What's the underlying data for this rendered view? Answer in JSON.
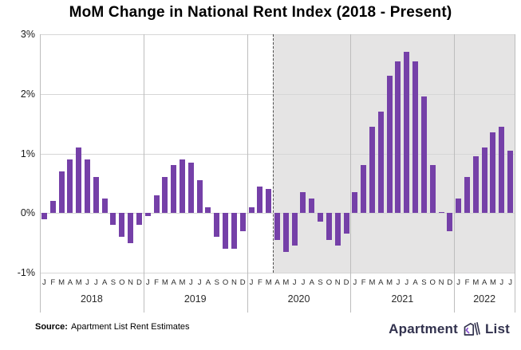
{
  "title": "MoM Change in National Rent Index (2018 - Present)",
  "footer": {
    "source_label": "Source:",
    "source_text": "Apartment List Rent Estimates"
  },
  "logo": {
    "text_left": "Apartment",
    "text_right": "List",
    "brand_navy": "#32324e",
    "brand_purple": "#8a4fd1"
  },
  "chart_data": {
    "type": "bar",
    "title": "MoM Change in National Rent Index (2018 - Present)",
    "xlabel": "",
    "ylabel": "",
    "ylim": [
      -1,
      3
    ],
    "yticks": [
      {
        "value": 3,
        "label": "3%"
      },
      {
        "value": 2,
        "label": "2%"
      },
      {
        "value": 1,
        "label": "1%"
      },
      {
        "value": 0,
        "label": "0%"
      },
      {
        "value": -1,
        "label": "-1%"
      }
    ],
    "grid": true,
    "legend": "none",
    "bar_color": "#7540a8",
    "shade_color": "#e5e4e4",
    "shade_start_month_index": 27,
    "dashed_line_month_index": 27,
    "month_letters": [
      "J",
      "F",
      "M",
      "A",
      "M",
      "J",
      "J",
      "A",
      "S",
      "O",
      "N",
      "D"
    ],
    "groups": [
      {
        "year": "2018",
        "values": [
          -0.1,
          0.2,
          0.7,
          0.9,
          1.1,
          0.9,
          0.6,
          0.25,
          -0.2,
          -0.4,
          -0.5,
          -0.2
        ]
      },
      {
        "year": "2019",
        "values": [
          -0.05,
          0.3,
          0.6,
          0.8,
          0.9,
          0.85,
          0.55,
          0.1,
          -0.4,
          -0.6,
          -0.6,
          -0.3
        ]
      },
      {
        "year": "2020",
        "values": [
          0.1,
          0.45,
          0.4,
          -0.45,
          -0.65,
          -0.55,
          0.35,
          0.25,
          -0.15,
          -0.45,
          -0.55,
          -0.35
        ]
      },
      {
        "year": "2021",
        "values": [
          0.35,
          0.8,
          1.45,
          1.7,
          2.3,
          2.55,
          2.7,
          2.55,
          1.95,
          0.8,
          0.02,
          -0.3
        ]
      },
      {
        "year": "2022",
        "values": [
          0.25,
          0.6,
          0.95,
          1.1,
          1.35,
          1.45,
          1.05
        ]
      }
    ]
  }
}
